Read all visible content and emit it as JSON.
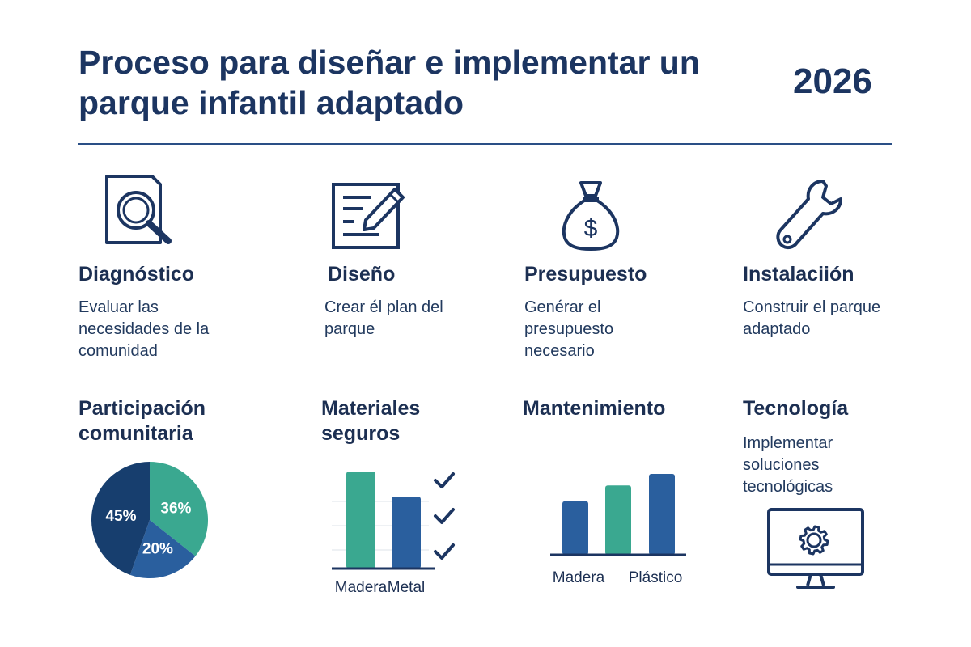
{
  "header": {
    "title": "Proceso para diseñar e implementar un parque infantil adaptado",
    "year": "2026"
  },
  "colors": {
    "navy": "#1c3561",
    "blue": "#2a5f9e",
    "teal": "#3aa890",
    "dark": "#173e6e"
  },
  "steps": [
    {
      "title": "Diagnóstico",
      "desc": "Evaluar las necesidades de la comunidad",
      "icon": "document-magnifier-icon"
    },
    {
      "title": "Diseño",
      "desc": "Crear él plan del parque",
      "icon": "edit-document-icon"
    },
    {
      "title": "Presupuesto",
      "desc": "Genérar el presupuesto necesario",
      "icon": "money-bag-icon"
    },
    {
      "title": "Instalaciión",
      "desc": "Construir el parque adaptado",
      "icon": "wrench-icon"
    }
  ],
  "features": [
    {
      "title": "Participación comunitaria"
    },
    {
      "title": "Materiales seguros"
    },
    {
      "title": "Mantenimiento"
    },
    {
      "title": "Tecnología",
      "desc": "Implementar soluciones tecnológicas",
      "icon": "monitor-gear-icon"
    }
  ],
  "chart_data": [
    {
      "type": "pie",
      "slices": [
        {
          "label": "45%",
          "value": 45,
          "color": "#173e6e"
        },
        {
          "label": "36%",
          "value": 36,
          "color": "#3aa890"
        },
        {
          "label": "20%",
          "value": 20,
          "color": "#2a5f9e"
        }
      ]
    },
    {
      "type": "bar",
      "categories": [
        "Madera",
        "Metal"
      ],
      "values": [
        100,
        74
      ],
      "colors": [
        "#3aa890",
        "#2a5f9e"
      ],
      "ylim": [
        0,
        100
      ],
      "checkmarks": 3
    },
    {
      "type": "bar",
      "categories": [
        "Madera",
        "",
        "Plástico"
      ],
      "tick_labels": [
        "Madera",
        "Plástico"
      ],
      "values": [
        65,
        84,
        98
      ],
      "colors": [
        "#2a5f9e",
        "#3aa890",
        "#2a5f9e"
      ],
      "ylim": [
        0,
        100
      ]
    }
  ]
}
